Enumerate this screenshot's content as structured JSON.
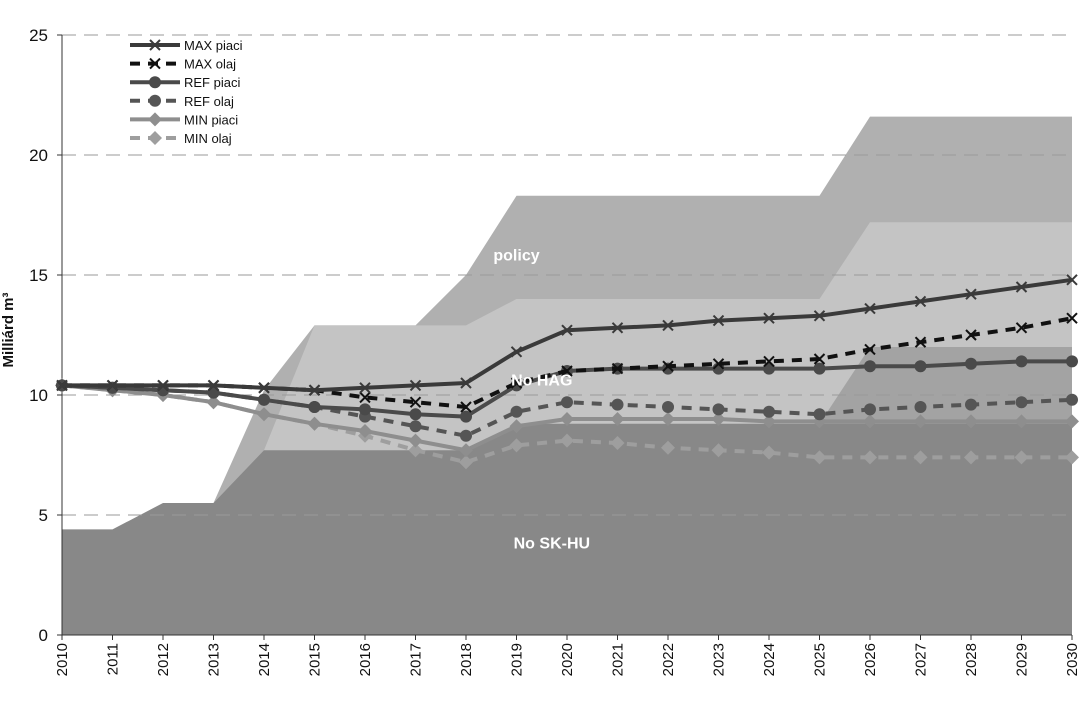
{
  "chart_data": {
    "type": "line",
    "title": "",
    "ylabel": "Milliárd m³",
    "xlabel": "",
    "ylim": [
      0,
      25
    ],
    "yticks": [
      "0",
      "5",
      "10",
      "15",
      "20",
      "25"
    ],
    "x": [
      "2010",
      "2011",
      "2012",
      "2013",
      "2014",
      "2015",
      "2016",
      "2017",
      "2018",
      "2019",
      "2020",
      "2021",
      "2022",
      "2023",
      "2024",
      "2025",
      "2026",
      "2027",
      "2028",
      "2029",
      "2030"
    ],
    "grid": "horizontal dashed",
    "legend_position": "top-left",
    "areas": [
      {
        "name": "policy",
        "label": "policy",
        "color": "#b0b0b0",
        "values": [
          null,
          null,
          null,
          5.5,
          10.2,
          12.9,
          12.9,
          12.9,
          15.0,
          18.3,
          18.3,
          18.3,
          18.3,
          18.3,
          18.3,
          18.3,
          21.6,
          21.6,
          21.6,
          21.6,
          21.6
        ]
      },
      {
        "name": "No HAG",
        "label": "No HAG",
        "color": "#c4c4c4",
        "values": [
          null,
          null,
          null,
          5.5,
          7.7,
          12.9,
          12.9,
          12.9,
          12.9,
          14.0,
          14.0,
          14.0,
          14.0,
          14.0,
          14.0,
          14.0,
          17.2,
          17.2,
          17.2,
          17.2,
          17.2
        ]
      },
      {
        "name": "No HAG lower",
        "label": "",
        "color": "#a3a3a3",
        "values": [
          null,
          null,
          null,
          null,
          null,
          null,
          null,
          null,
          null,
          null,
          null,
          null,
          null,
          null,
          null,
          8.8,
          12.0,
          12.0,
          12.0,
          12.0,
          12.0
        ]
      },
      {
        "name": "No SK-HU",
        "label": "No SK-HU",
        "color": "#888888",
        "values": [
          4.4,
          4.4,
          5.5,
          5.5,
          7.7,
          7.7,
          7.7,
          7.7,
          7.7,
          8.8,
          8.8,
          8.8,
          8.8,
          8.8,
          8.8,
          8.8,
          8.8,
          8.8,
          8.8,
          8.8,
          8.8
        ]
      }
    ],
    "series": [
      {
        "name": "MAX piaci",
        "color": "#3a3a3a",
        "dash": "solid",
        "marker": "x",
        "values": [
          10.4,
          10.4,
          10.4,
          10.4,
          10.3,
          10.2,
          10.3,
          10.4,
          10.5,
          11.8,
          12.7,
          12.8,
          12.9,
          13.1,
          13.2,
          13.3,
          13.6,
          13.9,
          14.2,
          14.5,
          14.8
        ]
      },
      {
        "name": "MAX olaj",
        "color": "#111111",
        "dash": "dashed",
        "marker": "x",
        "values": [
          10.4,
          10.4,
          10.4,
          10.4,
          10.3,
          10.2,
          9.9,
          9.7,
          9.5,
          10.5,
          11.0,
          11.1,
          11.2,
          11.3,
          11.4,
          11.5,
          11.9,
          12.2,
          12.5,
          12.8,
          13.2
        ]
      },
      {
        "name": "REF piaci",
        "color": "#4a4a4a",
        "dash": "solid",
        "marker": "circle",
        "values": [
          10.4,
          10.3,
          10.2,
          10.1,
          9.8,
          9.5,
          9.4,
          9.2,
          9.1,
          10.4,
          11.0,
          11.1,
          11.1,
          11.1,
          11.1,
          11.1,
          11.2,
          11.2,
          11.3,
          11.4,
          11.4
        ]
      },
      {
        "name": "REF olaj",
        "color": "#555555",
        "dash": "dashed",
        "marker": "circle",
        "values": [
          10.4,
          10.3,
          10.2,
          10.1,
          9.8,
          9.5,
          9.1,
          8.7,
          8.3,
          9.3,
          9.7,
          9.6,
          9.5,
          9.4,
          9.3,
          9.2,
          9.4,
          9.5,
          9.6,
          9.7,
          9.8
        ]
      },
      {
        "name": "MIN piaci",
        "color": "#8e8e8e",
        "dash": "solid",
        "marker": "diamond",
        "values": [
          10.4,
          10.2,
          10.0,
          9.7,
          9.2,
          8.8,
          8.5,
          8.1,
          7.7,
          8.7,
          9.0,
          9.0,
          9.0,
          9.0,
          8.9,
          8.9,
          8.9,
          8.9,
          8.9,
          8.9,
          8.9
        ]
      },
      {
        "name": "MIN olaj",
        "color": "#9e9e9e",
        "dash": "dashed",
        "marker": "diamond",
        "values": [
          10.4,
          10.2,
          10.0,
          9.7,
          9.2,
          8.8,
          8.3,
          7.7,
          7.2,
          7.9,
          8.1,
          8.0,
          7.8,
          7.7,
          7.6,
          7.4,
          7.4,
          7.4,
          7.4,
          7.4,
          7.4
        ]
      }
    ]
  }
}
